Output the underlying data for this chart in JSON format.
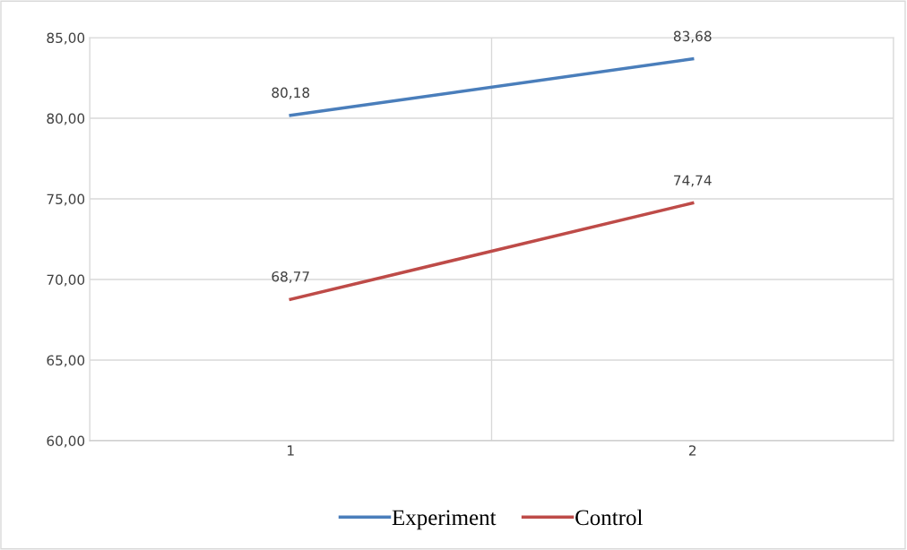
{
  "chart_data": {
    "type": "line",
    "categories": [
      "1",
      "2"
    ],
    "series": [
      {
        "name": "Experiment",
        "color": "#4a7ebb",
        "values": [
          80.18,
          83.68
        ],
        "value_labels": [
          "80,18",
          "83,68"
        ]
      },
      {
        "name": "Control",
        "color": "#be4b48",
        "values": [
          68.77,
          74.74
        ],
        "value_labels": [
          "68,77",
          "74,74"
        ]
      }
    ],
    "ylim": [
      60,
      85
    ],
    "yticks": [
      {
        "value": 60,
        "label": "60,00"
      },
      {
        "value": 65,
        "label": "65,00"
      },
      {
        "value": 70,
        "label": "70,00"
      },
      {
        "value": 75,
        "label": "75,00"
      },
      {
        "value": 80,
        "label": "80,00"
      },
      {
        "value": 85,
        "label": "85,00"
      }
    ],
    "grid": true,
    "legend": "bottom",
    "marker": "none",
    "line_style": "solid"
  }
}
